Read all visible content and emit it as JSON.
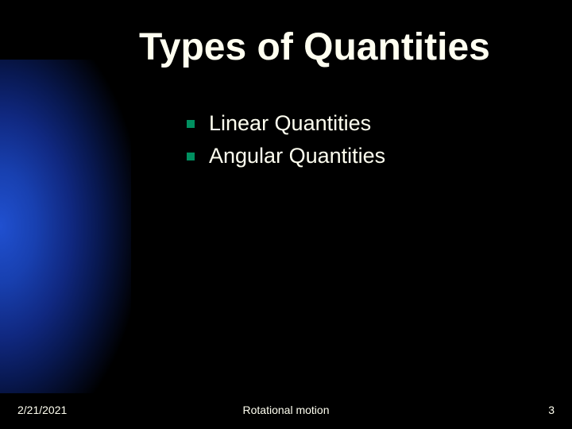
{
  "slide": {
    "title": "Types of Quantities",
    "bullets": [
      {
        "text": "Linear Quantities"
      },
      {
        "text": "Angular Quantities"
      }
    ],
    "bullet_color": "#009060",
    "text_color": "#fffff0",
    "background_color": "#000000",
    "gradient": {
      "inner": "#2050d0",
      "outer": "#000000"
    }
  },
  "footer": {
    "date": "2/21/2021",
    "topic": "Rotational motion",
    "page": "3"
  }
}
